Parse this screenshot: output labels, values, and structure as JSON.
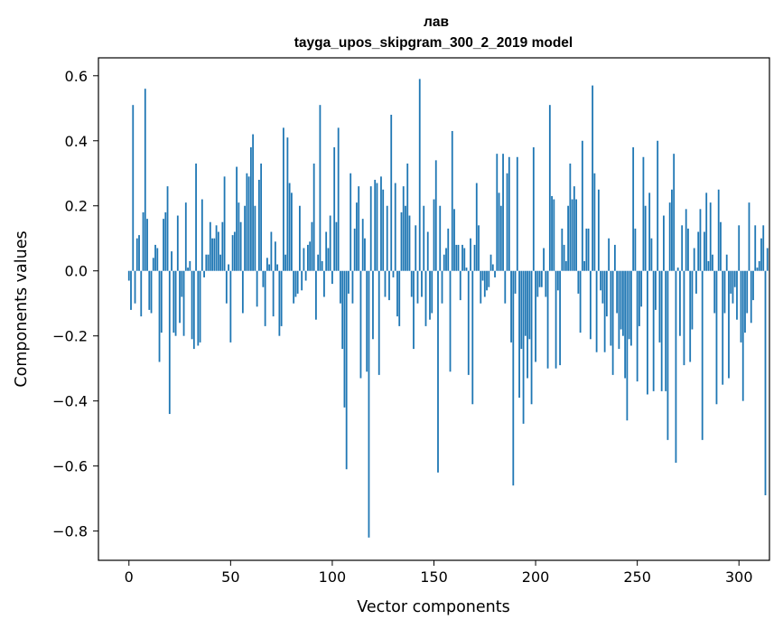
{
  "chart_data": {
    "type": "bar",
    "title": "лав",
    "subtitle": "tayga_upos_skipgram_300_2_2019 model",
    "xlabel": "Vector components",
    "ylabel": "Components values",
    "xlim": [
      -15,
      315
    ],
    "ylim": [
      -0.89,
      0.655
    ],
    "xticks": [
      0,
      50,
      100,
      150,
      200,
      250,
      300
    ],
    "xtick_labels": [
      "0",
      "50",
      "100",
      "150",
      "200",
      "250",
      "300"
    ],
    "yticks": [
      0.6,
      0.4,
      0.2,
      0.0,
      -0.2,
      -0.4,
      -0.6,
      -0.8
    ],
    "ytick_labels": [
      "0.6",
      "0.4",
      "0.2",
      "0.0",
      "−0.2",
      "−0.4",
      "−0.6",
      "−0.8"
    ],
    "bar_color": "#1f77b4",
    "categories_start": 0,
    "values": [
      -0.03,
      -0.12,
      0.51,
      -0.1,
      0.1,
      0.11,
      -0.14,
      0.18,
      0.56,
      0.16,
      -0.12,
      -0.13,
      0.04,
      0.08,
      0.07,
      -0.28,
      -0.19,
      0.16,
      0.18,
      0.26,
      -0.44,
      0.06,
      -0.19,
      -0.2,
      0.17,
      -0.16,
      -0.08,
      -0.2,
      0.21,
      0.01,
      0.03,
      -0.21,
      -0.24,
      0.33,
      -0.23,
      -0.22,
      0.22,
      -0.02,
      0.05,
      0.05,
      0.15,
      0.1,
      0.1,
      0.14,
      0.12,
      0.05,
      0.15,
      0.29,
      -0.1,
      0.02,
      -0.22,
      0.11,
      0.12,
      0.32,
      0.21,
      0.15,
      -0.13,
      0.2,
      0.3,
      0.29,
      0.38,
      0.42,
      0.2,
      -0.11,
      0.28,
      0.33,
      -0.05,
      -0.17,
      0.04,
      0.02,
      0.12,
      -0.14,
      0.09,
      0.02,
      -0.2,
      -0.17,
      0.44,
      0.05,
      0.41,
      0.27,
      0.24,
      -0.1,
      -0.08,
      -0.07,
      0.2,
      -0.06,
      0.07,
      -0.03,
      0.08,
      0.09,
      0.15,
      0.33,
      -0.15,
      0.05,
      0.51,
      0.03,
      -0.08,
      0.12,
      0.07,
      0.17,
      -0.04,
      0.38,
      0.15,
      0.44,
      -0.1,
      -0.24,
      -0.42,
      -0.61,
      -0.07,
      0.3,
      -0.1,
      0.13,
      0.21,
      0.26,
      -0.33,
      0.16,
      0.1,
      -0.31,
      -0.82,
      0.26,
      -0.21,
      0.28,
      0.27,
      -0.32,
      0.29,
      0.25,
      -0.08,
      0.2,
      -0.09,
      0.48,
      -0.02,
      0.27,
      -0.14,
      -0.17,
      0.18,
      0.26,
      0.2,
      0.33,
      0.17,
      -0.08,
      -0.24,
      0.14,
      -0.1,
      0.59,
      -0.08,
      0.2,
      -0.17,
      0.12,
      -0.15,
      -0.13,
      0.22,
      0.34,
      -0.62,
      0.2,
      -0.1,
      0.05,
      0.07,
      0.13,
      -0.31,
      0.43,
      0.19,
      0.08,
      0.08,
      -0.09,
      0.08,
      0.07,
      0.01,
      -0.32,
      0.1,
      -0.41,
      0.08,
      0.27,
      0.14,
      -0.1,
      -0.03,
      -0.08,
      -0.06,
      -0.05,
      0.05,
      0.02,
      -0.02,
      0.36,
      0.24,
      0.2,
      0.36,
      -0.1,
      0.3,
      0.35,
      -0.22,
      -0.66,
      -0.07,
      0.35,
      -0.39,
      -0.24,
      -0.47,
      -0.2,
      -0.33,
      -0.21,
      -0.41,
      0.38,
      -0.28,
      -0.08,
      -0.05,
      -0.05,
      0.07,
      -0.08,
      -0.3,
      0.51,
      0.23,
      0.22,
      -0.3,
      -0.06,
      -0.29,
      0.13,
      0.08,
      0.03,
      0.2,
      0.33,
      0.22,
      0.26,
      0.22,
      -0.07,
      -0.19,
      0.4,
      0.03,
      0.13,
      0.13,
      -0.21,
      0.57,
      0.3,
      -0.25,
      0.25,
      -0.06,
      -0.1,
      -0.25,
      -0.14,
      0.1,
      -0.23,
      -0.32,
      0.08,
      -0.13,
      -0.24,
      -0.18,
      -0.2,
      -0.33,
      -0.46,
      -0.21,
      -0.23,
      0.38,
      0.13,
      -0.34,
      -0.17,
      -0.11,
      0.35,
      0.2,
      -0.38,
      0.24,
      0.1,
      -0.37,
      -0.12,
      0.4,
      -0.22,
      -0.37,
      0.17,
      -0.37,
      -0.52,
      0.21,
      0.25,
      0.36,
      -0.59,
      0.01,
      -0.2,
      0.14,
      -0.29,
      0.19,
      0.13,
      -0.28,
      -0.18,
      0.07,
      -0.07,
      0.12,
      0.19,
      -0.52,
      0.12,
      0.24,
      0.03,
      0.21,
      0.05,
      -0.13,
      -0.41,
      0.25,
      0.15,
      -0.35,
      -0.13,
      0.05,
      -0.33,
      -0.07,
      -0.1,
      -0.05,
      -0.15,
      0.14,
      -0.22,
      -0.4,
      -0.19,
      -0.13,
      0.21,
      -0.16,
      -0.09,
      0.14,
      0.01,
      0.03,
      0.1,
      0.14,
      -0.69,
      0.07
    ]
  }
}
